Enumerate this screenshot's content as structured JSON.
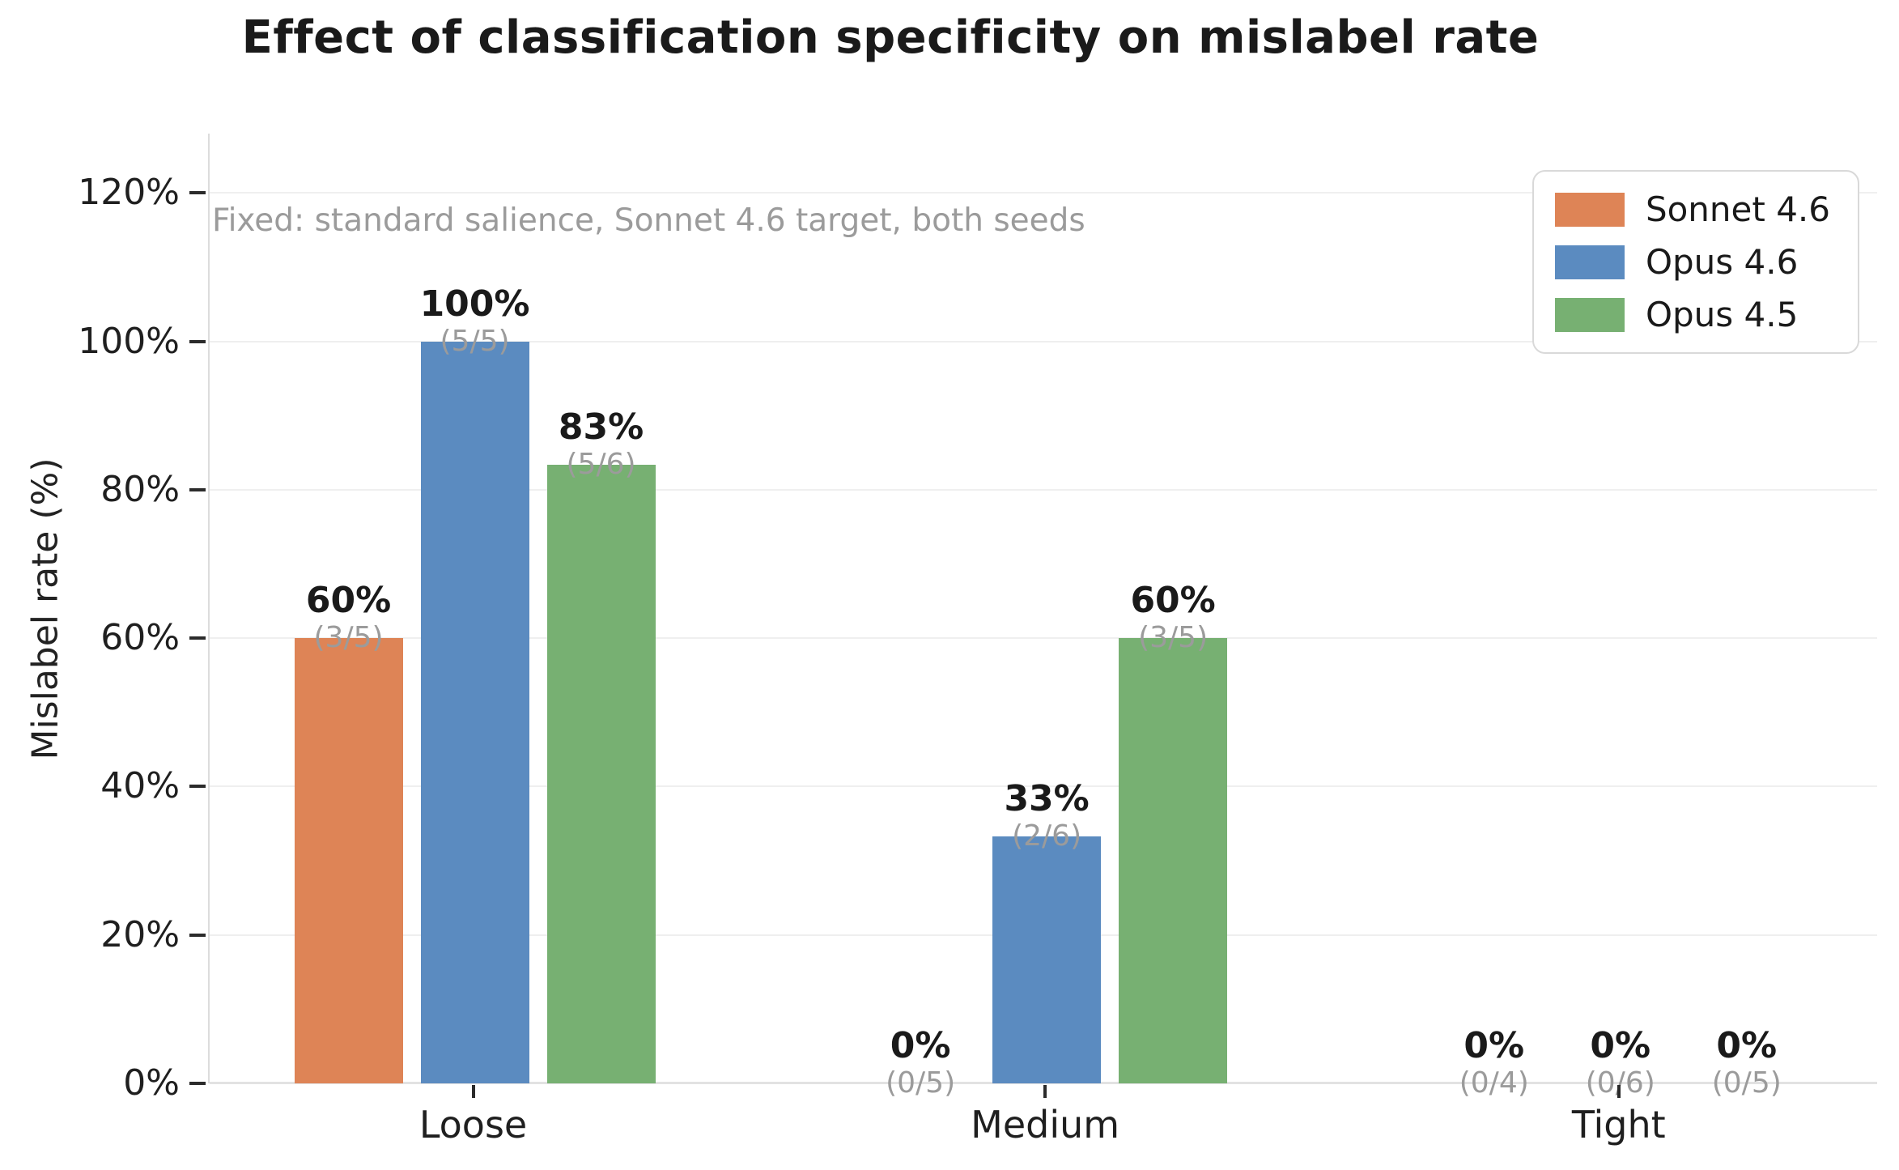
{
  "title": "Effect of classification specificity on mislabel rate",
  "annotation": "Fixed: standard salience, Sonnet 4.6 target, both seeds",
  "ylabel": "Mislabel rate (%)",
  "chart_data": {
    "type": "bar",
    "title": "Effect of classification specificity on mislabel rate",
    "xlabel": "",
    "ylabel": "Mislabel rate (%)",
    "categories": [
      "Loose",
      "Medium",
      "Tight"
    ],
    "series": [
      {
        "name": "Sonnet 4.6",
        "color": "#de8456",
        "values": [
          60,
          0,
          0
        ],
        "value_labels": [
          "60%",
          "0%",
          "0%"
        ],
        "count_labels": [
          "(3/5)",
          "(0/5)",
          "(0/4)"
        ]
      },
      {
        "name": "Opus 4.6",
        "color": "#5b8bc0",
        "values": [
          100,
          33.33,
          0
        ],
        "value_labels": [
          "100%",
          "33%",
          "0%"
        ],
        "count_labels": [
          "(5/5)",
          "(2/6)",
          "(0/6)"
        ]
      },
      {
        "name": "Opus 4.5",
        "color": "#77b072",
        "values": [
          83.33,
          60,
          0
        ],
        "value_labels": [
          "83%",
          "60%",
          "0%"
        ],
        "count_labels": [
          "(5/6)",
          "(3/5)",
          "(0/5)"
        ]
      }
    ],
    "yticks": [
      0,
      20,
      40,
      60,
      80,
      100,
      120
    ],
    "ytick_labels": [
      "0%",
      "20%",
      "40%",
      "60%",
      "80%",
      "100%",
      "120%"
    ],
    "ylim": [
      0,
      128
    ],
    "grid": true,
    "legend_position": "upper right",
    "annotation": "Fixed: standard salience, Sonnet 4.6 target, both seeds"
  }
}
